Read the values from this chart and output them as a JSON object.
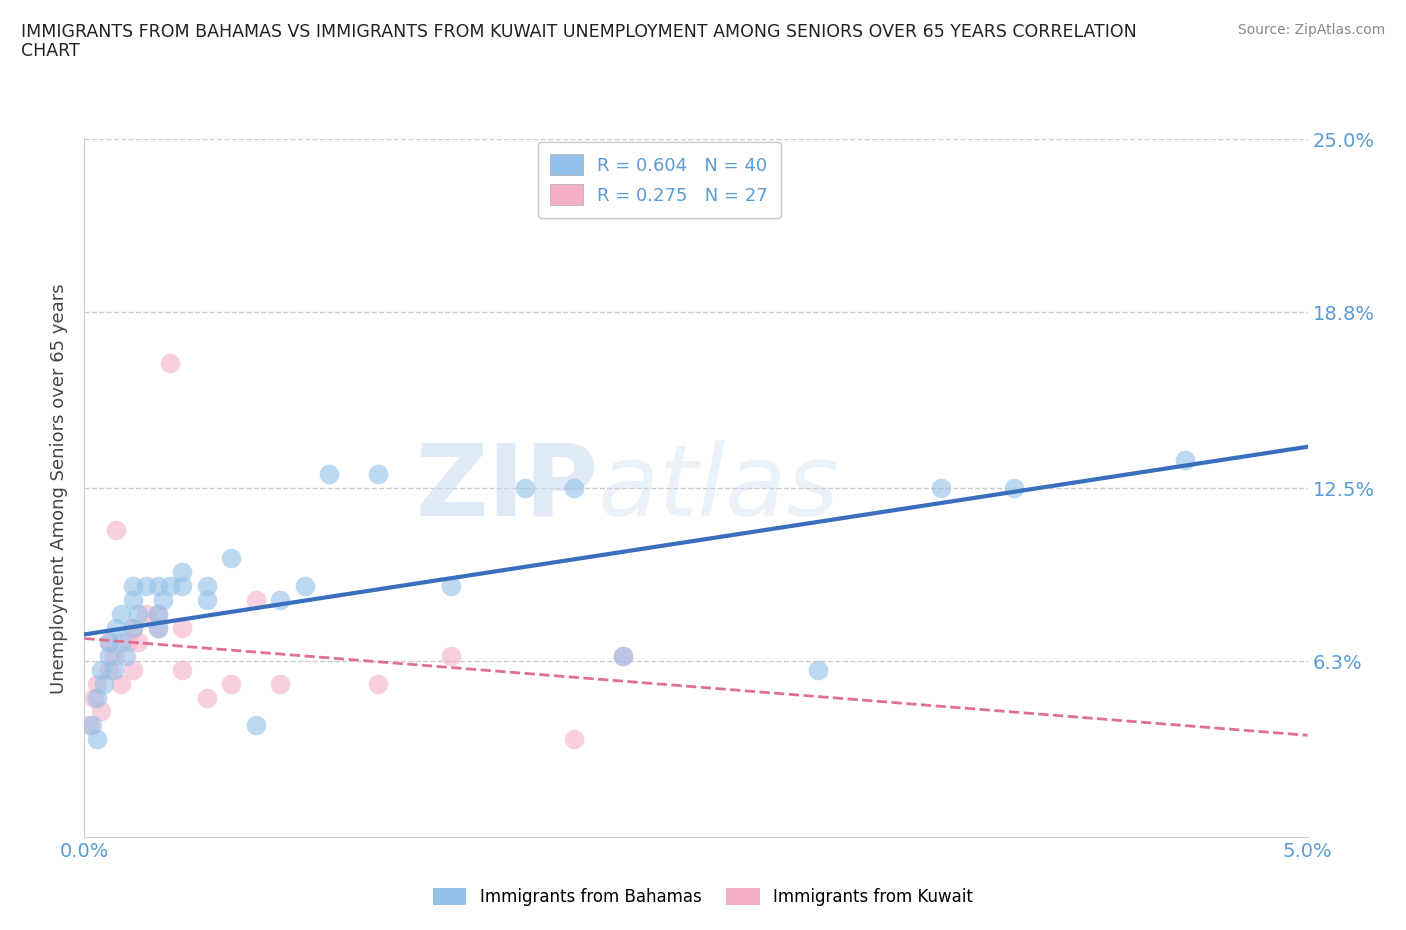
{
  "title_line1": "IMMIGRANTS FROM BAHAMAS VS IMMIGRANTS FROM KUWAIT UNEMPLOYMENT AMONG SENIORS OVER 65 YEARS CORRELATION",
  "title_line2": "CHART",
  "source": "Source: ZipAtlas.com",
  "ylabel": "Unemployment Among Seniors over 65 years",
  "xlim": [
    0.0,
    0.05
  ],
  "ylim": [
    0.0,
    0.25
  ],
  "x_ticks": [
    0.0,
    0.01,
    0.02,
    0.03,
    0.04,
    0.05
  ],
  "x_tick_labels": [
    "0.0%",
    "",
    "",
    "",
    "",
    "5.0%"
  ],
  "y_ticks": [
    0.0,
    0.063,
    0.125,
    0.188,
    0.25
  ],
  "y_tick_labels_right": [
    "",
    "6.3%",
    "12.5%",
    "18.8%",
    "25.0%"
  ],
  "legend_r1": "R = 0.604",
  "legend_n1": "N = 40",
  "legend_r2": "R = 0.275",
  "legend_n2": "N = 27",
  "color_bahamas": "#92c0e8",
  "color_kuwait": "#f4afc8",
  "color_line_bahamas": "#3a6fbe",
  "color_line_kuwait": "#e07090",
  "background_color": "#ffffff",
  "grid_color": "#cccccc",
  "tick_label_color": "#5b9bd5",
  "watermark1": "ZIP",
  "watermark2": "atlas",
  "bahamas_x": [
    0.0003,
    0.0005,
    0.0005,
    0.0007,
    0.0008,
    0.001,
    0.001,
    0.0012,
    0.0013,
    0.0015,
    0.0015,
    0.0017,
    0.002,
    0.002,
    0.002,
    0.0022,
    0.0025,
    0.003,
    0.003,
    0.003,
    0.0032,
    0.0035,
    0.004,
    0.004,
    0.005,
    0.005,
    0.006,
    0.007,
    0.008,
    0.009,
    0.01,
    0.012,
    0.015,
    0.018,
    0.02,
    0.022,
    0.03,
    0.035,
    0.038,
    0.045
  ],
  "bahamas_y": [
    0.04,
    0.05,
    0.035,
    0.06,
    0.055,
    0.065,
    0.07,
    0.06,
    0.075,
    0.07,
    0.08,
    0.065,
    0.075,
    0.085,
    0.09,
    0.08,
    0.09,
    0.08,
    0.09,
    0.075,
    0.085,
    0.09,
    0.09,
    0.095,
    0.09,
    0.085,
    0.1,
    0.04,
    0.085,
    0.09,
    0.13,
    0.13,
    0.09,
    0.125,
    0.125,
    0.065,
    0.06,
    0.125,
    0.125,
    0.135
  ],
  "kuwait_x": [
    0.0002,
    0.0004,
    0.0005,
    0.0007,
    0.001,
    0.001,
    0.0012,
    0.0013,
    0.0015,
    0.0018,
    0.002,
    0.002,
    0.0022,
    0.0025,
    0.003,
    0.003,
    0.0035,
    0.004,
    0.004,
    0.005,
    0.006,
    0.007,
    0.008,
    0.012,
    0.015,
    0.02,
    0.022
  ],
  "kuwait_y": [
    0.04,
    0.05,
    0.055,
    0.045,
    0.06,
    0.07,
    0.065,
    0.11,
    0.055,
    0.07,
    0.075,
    0.06,
    0.07,
    0.08,
    0.075,
    0.08,
    0.17,
    0.075,
    0.06,
    0.05,
    0.055,
    0.085,
    0.055,
    0.055,
    0.065,
    0.035,
    0.065
  ]
}
